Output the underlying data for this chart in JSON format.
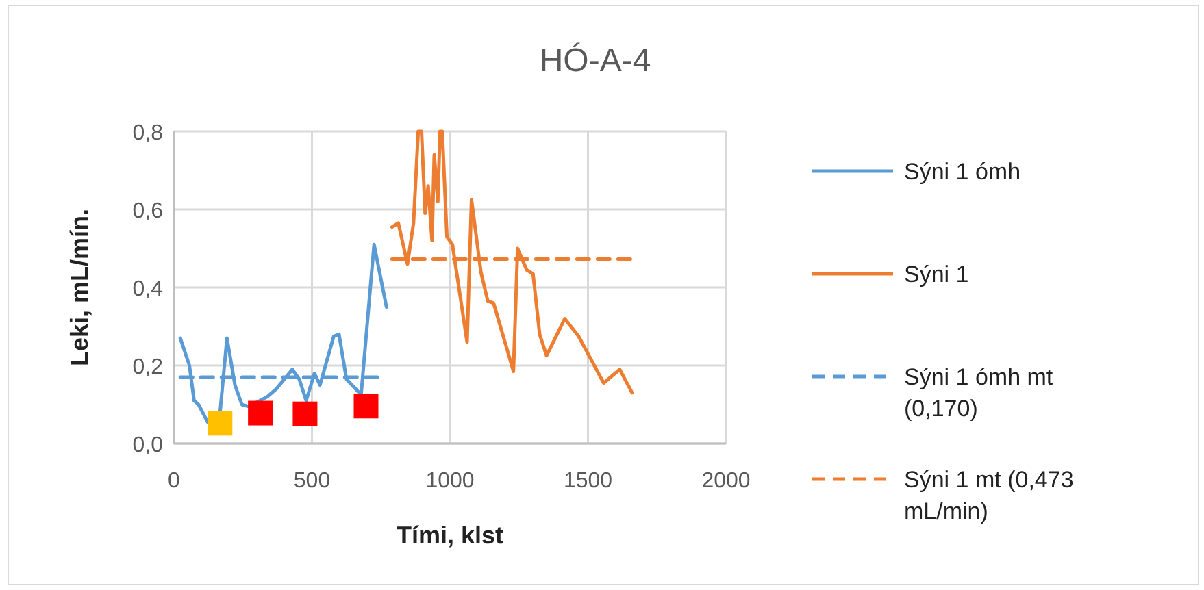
{
  "chart_data": {
    "type": "line",
    "title": "HÓ-A-4",
    "xlabel": "Tími, klst",
    "ylabel": "Leki, mL/mín.",
    "xlim": [
      0,
      2000
    ],
    "xticks": [
      0,
      500,
      1000,
      1500,
      2000
    ],
    "ylim": [
      0,
      0.8
    ],
    "yticks": [
      {
        "value": 0,
        "label": "0,0"
      },
      {
        "value": 0.2,
        "label": "0,2"
      },
      {
        "value": 0.4,
        "label": "0,4"
      },
      {
        "value": 0.6,
        "label": "0,6"
      },
      {
        "value": 0.8,
        "label": "0,8"
      }
    ],
    "grid": true,
    "legend": "right",
    "line_style": "solid",
    "marker": "none",
    "series": [
      {
        "name": "Sýni 1 ómh",
        "color": "#5b9bd5",
        "x": [
          23,
          56,
          73,
          89,
          122,
          167,
          192,
          221,
          246,
          271,
          338,
          371,
          429,
          454,
          479,
          509,
          529,
          579,
          598,
          625,
          678,
          725,
          770
        ],
        "values": [
          0.27,
          0.2,
          0.11,
          0.1,
          0.055,
          0.08,
          0.27,
          0.15,
          0.1,
          0.095,
          0.12,
          0.14,
          0.19,
          0.165,
          0.11,
          0.18,
          0.15,
          0.275,
          0.28,
          0.165,
          0.125,
          0.51,
          0.35
        ]
      },
      {
        "name": "Sýni 1",
        "color": "#ed7d31",
        "x": [
          790,
          813,
          846,
          868,
          885,
          897,
          910,
          921,
          935,
          943,
          956,
          964,
          972,
          989,
          1009,
          1062,
          1078,
          1112,
          1137,
          1158,
          1230,
          1245,
          1278,
          1301,
          1325,
          1350,
          1416,
          1466,
          1557,
          1615,
          1660
        ],
        "values": [
          0.555,
          0.565,
          0.46,
          0.565,
          0.8,
          0.8,
          0.59,
          0.66,
          0.52,
          0.74,
          0.62,
          0.8,
          0.8,
          0.53,
          0.51,
          0.26,
          0.625,
          0.44,
          0.365,
          0.36,
          0.185,
          0.5,
          0.445,
          0.435,
          0.28,
          0.225,
          0.32,
          0.275,
          0.155,
          0.19,
          0.13
        ]
      },
      {
        "name": "Sýni 1 ómh mt (0,170)",
        "color": "#5b9bd5",
        "line_style": "dashed",
        "x": [
          23,
          744
        ],
        "values": [
          0.17,
          0.17
        ]
      },
      {
        "name": "Sýni 1 mt (0,473 mL/min)",
        "color": "#ed7d31",
        "line_style": "dashed",
        "x": [
          790,
          1655
        ],
        "values": [
          0.473,
          0.473
        ]
      },
      {
        "type": "scatter",
        "marker": "square",
        "color": "#ffc000",
        "x": [
          167
        ],
        "values": [
          0.052
        ]
      },
      {
        "type": "scatter",
        "marker": "square",
        "color": "#ff0000",
        "x": [
          313,
          475,
          696
        ],
        "values": [
          0.078,
          0.076,
          0.096
        ]
      }
    ]
  }
}
